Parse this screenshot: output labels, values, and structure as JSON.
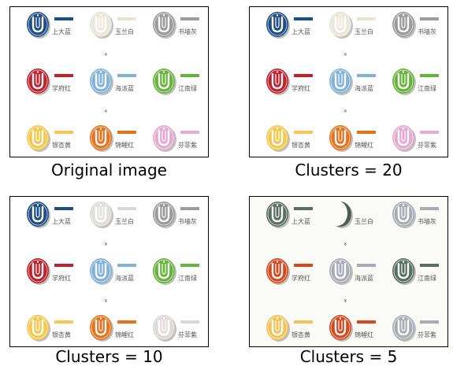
{
  "panels": [
    {
      "caption": "Original image",
      "background": "#ffffff",
      "tiles": [
        {
          "label": "上大蓝",
          "badge": "#1f4e85",
          "rim": "#1f4e85",
          "swatch": "#1f4e85",
          "style": "logo"
        },
        {
          "label": "玉兰白",
          "badge": "#efe9dc",
          "rim": "#e8e2d2",
          "swatch": "#eae3d2",
          "style": "logo"
        },
        {
          "label": "书墙灰",
          "badge": "#9a9a9a",
          "rim": "#9a9a9a",
          "swatch": "#9c9c9c",
          "style": "logo"
        },
        {
          "label": "学府红",
          "badge": "#c0212b",
          "rim": "#c0212b",
          "swatch": "#c0212b",
          "style": "logo"
        },
        {
          "label": "海派蓝",
          "badge": "#7fb1d9",
          "rim": "#7fb1d9",
          "swatch": "#80b2da",
          "style": "logo"
        },
        {
          "label": "江南绿",
          "badge": "#64b33a",
          "rim": "#64b33a",
          "swatch": "#64b33a",
          "style": "logo"
        },
        {
          "label": "银杏黄",
          "badge": "#f5c64b",
          "rim": "#f5c64b",
          "swatch": "#f6c850",
          "style": "logo"
        },
        {
          "label": "锦鲤红",
          "badge": "#e8701a",
          "rim": "#e8701a",
          "swatch": "#e8701a",
          "style": "logo"
        },
        {
          "label": "芬菲紫",
          "badge": "#e4a9cf",
          "rim": "#e4a9cf",
          "swatch": "#e6aed3",
          "style": "logo"
        }
      ]
    },
    {
      "caption": "Clusters = 20",
      "background": "#ffffff",
      "tiles": [
        {
          "label": "上大蓝",
          "badge": "#1f4e85",
          "rim": "#1f4e85",
          "swatch": "#1f4e85",
          "style": "logo"
        },
        {
          "label": "玉兰白",
          "badge": "#efe9dc",
          "rim": "#e8e2d2",
          "swatch": "#eae3d2",
          "style": "logo"
        },
        {
          "label": "书墙灰",
          "badge": "#9a9a9a",
          "rim": "#9a9a9a",
          "swatch": "#9c9c9c",
          "style": "logo"
        },
        {
          "label": "学府红",
          "badge": "#c0212b",
          "rim": "#c0212b",
          "swatch": "#c0212b",
          "style": "logo"
        },
        {
          "label": "海派蓝",
          "badge": "#7fb1d9",
          "rim": "#7fb1d9",
          "swatch": "#80b2da",
          "style": "logo"
        },
        {
          "label": "江南绿",
          "badge": "#64b33a",
          "rim": "#64b33a",
          "swatch": "#64b33a",
          "style": "logo"
        },
        {
          "label": "银杏黄",
          "badge": "#f5c64b",
          "rim": "#f5c64b",
          "swatch": "#f6c850",
          "style": "logo"
        },
        {
          "label": "锦鲤红",
          "badge": "#e8701a",
          "rim": "#e8701a",
          "swatch": "#e8701a",
          "style": "logo"
        },
        {
          "label": "芬菲紫",
          "badge": "#e4a9cf",
          "rim": "#e4a9cf",
          "swatch": "#e6aed3",
          "style": "logo"
        }
      ]
    },
    {
      "caption": "Clusters = 10",
      "background": "#ffffff",
      "tiles": [
        {
          "label": "上大蓝",
          "badge": "#1f4e85",
          "rim": "#1f4e85",
          "swatch": "#1f4e85",
          "style": "logo"
        },
        {
          "label": "玉兰白",
          "badge": "#e6e1df",
          "rim": "#dcd6d4",
          "swatch": "#ddd6d8",
          "style": "logo"
        },
        {
          "label": "书墙灰",
          "badge": "#9a9a9a",
          "rim": "#9a9a9a",
          "swatch": "#9c9c9c",
          "style": "logo"
        },
        {
          "label": "学府红",
          "badge": "#c0212b",
          "rim": "#c0212b",
          "swatch": "#c0212b",
          "style": "logo"
        },
        {
          "label": "海派蓝",
          "badge": "#7fb1d9",
          "rim": "#7fb1d9",
          "swatch": "#80b2da",
          "style": "logo"
        },
        {
          "label": "江南绿",
          "badge": "#64b33a",
          "rim": "#64b33a",
          "swatch": "#64b33a",
          "style": "logo"
        },
        {
          "label": "银杏黄",
          "badge": "#f5c64b",
          "rim": "#f5c64b",
          "swatch": "#f6c850",
          "style": "logo"
        },
        {
          "label": "锦鲤红",
          "badge": "#e8701a",
          "rim": "#e8701a",
          "swatch": "#e8701a",
          "style": "logo"
        },
        {
          "label": "芬菲紫",
          "badge": "#e2dcda",
          "rim": "#d8d2d0",
          "swatch": "#ddd6d8",
          "style": "logo"
        }
      ]
    },
    {
      "caption": "Clusters = 5",
      "background": "#fbfbf8",
      "tiles": [
        {
          "label": "上大蓝",
          "badge": "#5b6e62",
          "rim": "#5b6e62",
          "swatch": "#5b6e62",
          "style": "logo"
        },
        {
          "label": "玉兰白",
          "badge": "#fbfbf8",
          "rim": "#4d5e55",
          "swatch": "#fbfbf8",
          "style": "crescent"
        },
        {
          "label": "书墙灰",
          "badge": "#a9acb6",
          "rim": "#a9acb6",
          "swatch": "#a9acb6",
          "style": "logo"
        },
        {
          "label": "学府红",
          "badge": "#d9471c",
          "rim": "#d9471c",
          "swatch": "#d9471c",
          "style": "logo"
        },
        {
          "label": "海派蓝",
          "badge": "#a9acb6",
          "rim": "#a9acb6",
          "swatch": "#a9acb6",
          "style": "logo"
        },
        {
          "label": "江南绿",
          "badge": "#5b6e62",
          "rim": "#5b6e62",
          "swatch": "#5b6e62",
          "style": "logo"
        },
        {
          "label": "银杏黄",
          "badge": "#f6c156",
          "rim": "#f6c156",
          "swatch": "#f6c156",
          "style": "logo"
        },
        {
          "label": "锦鲤红",
          "badge": "#d9471c",
          "rim": "#d9471c",
          "swatch": "#d9471c",
          "style": "logo"
        },
        {
          "label": "芬菲紫",
          "badge": "#a9acb6",
          "rim": "#a9acb6",
          "swatch": "#a9acb6",
          "style": "logo"
        }
      ]
    }
  ],
  "arrow_glyph": "»"
}
